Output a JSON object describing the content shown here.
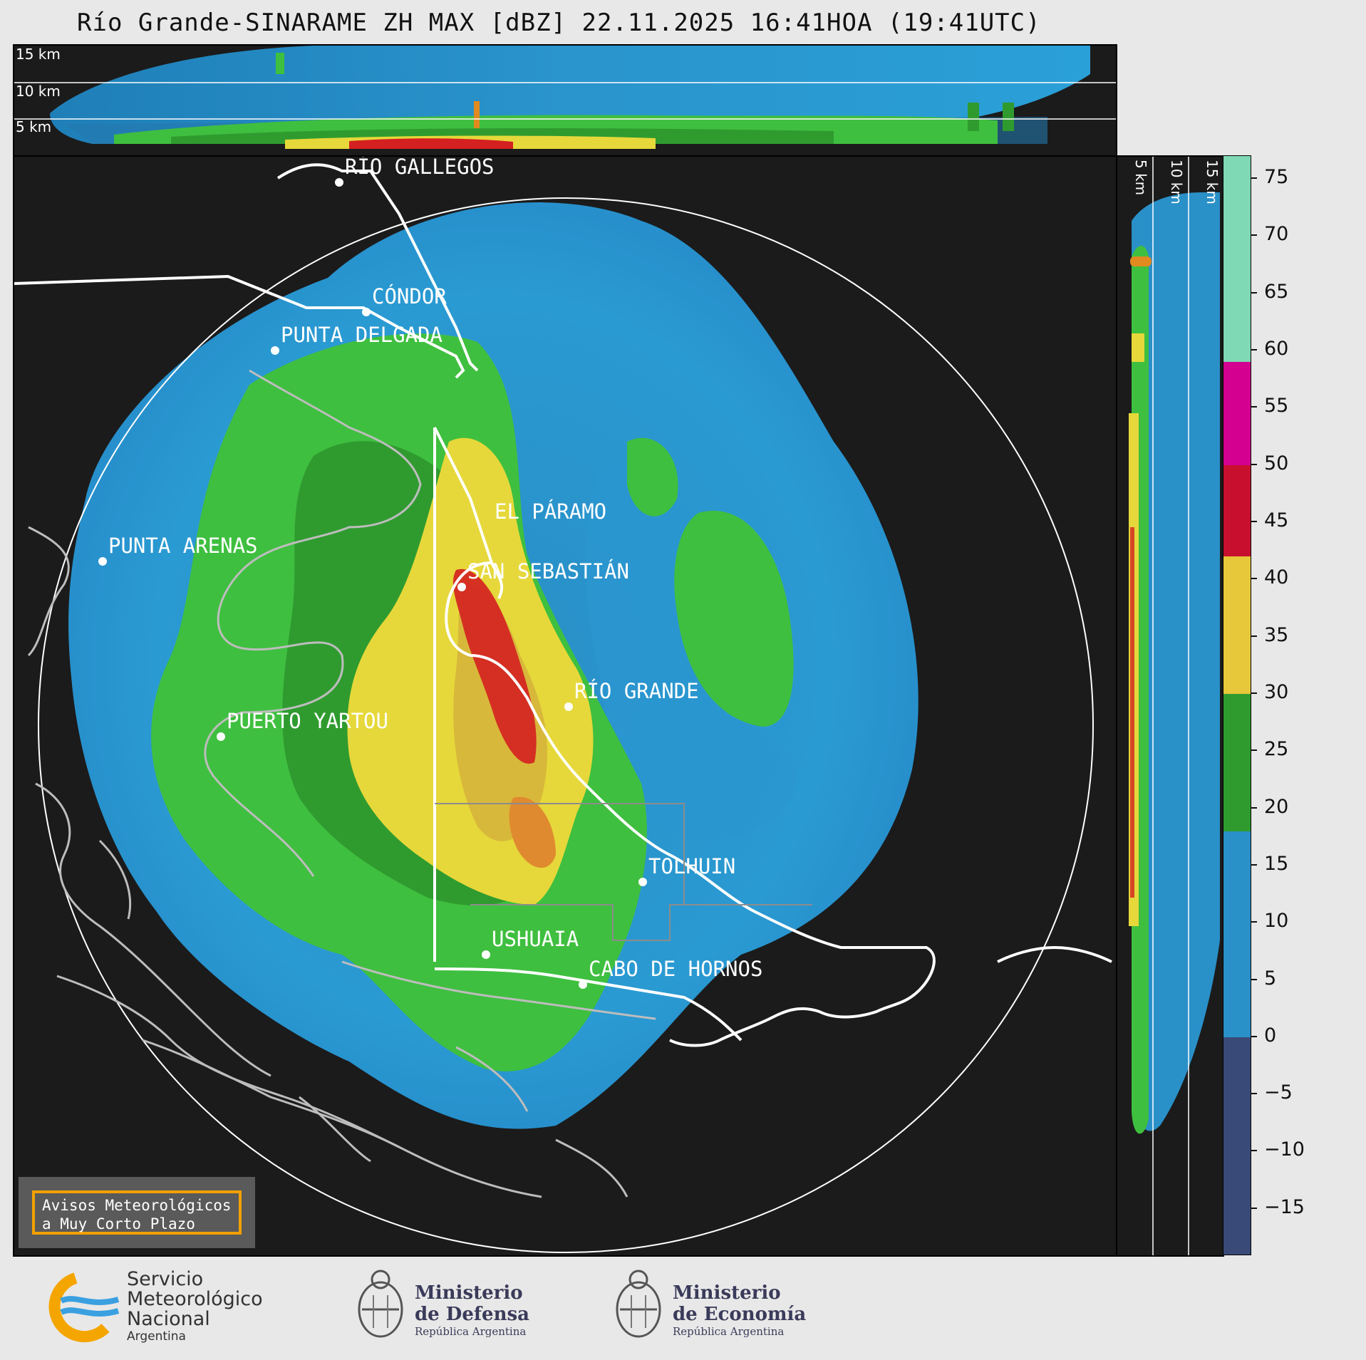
{
  "title": "Río Grande-SINARAME ZH MAX [dBZ] 22.11.2025 16:41HOA (19:41UTC)",
  "height_labels_top": [
    "15 km",
    "10 km",
    "5 km"
  ],
  "height_labels_side": [
    "5 km",
    "10 km",
    "15 km"
  ],
  "cities": [
    {
      "name": "RÍO GALLEGOS"
    },
    {
      "name": "CÓNDOR"
    },
    {
      "name": "PUNTA DELGADA"
    },
    {
      "name": "EL PÁRAMO"
    },
    {
      "name": "PUNTA ARENAS"
    },
    {
      "name": "SAN SEBASTIÁN"
    },
    {
      "name": "RÍO GRANDE"
    },
    {
      "name": "PUERTO YARTOU"
    },
    {
      "name": "TOLHUIN"
    },
    {
      "name": "USHUAIA"
    },
    {
      "name": "CABO DE HORNOS"
    }
  ],
  "colorbar": {
    "unit": "dBZ",
    "ticks": [
      "75",
      "70",
      "65",
      "60",
      "55",
      "50",
      "45",
      "40",
      "35",
      "30",
      "25",
      "20",
      "15",
      "10",
      "5",
      "0",
      "−5",
      "−10",
      "−15"
    ],
    "bands": [
      {
        "from": 59,
        "to": 77,
        "color": "#7fd9b4"
      },
      {
        "from": 50,
        "to": 59,
        "color": "#d40090"
      },
      {
        "from": 42,
        "to": 50,
        "color": "#c8102e"
      },
      {
        "from": 30,
        "to": 42,
        "color": "#e6c83a"
      },
      {
        "from": 18,
        "to": 30,
        "color": "#2f9b2f"
      },
      {
        "from": 0,
        "to": 18,
        "color": "#2a90c8"
      },
      {
        "from": -19,
        "to": 0,
        "color": "#3a4a78"
      }
    ]
  },
  "alert": {
    "line1": "Avisos Meteorológicos",
    "line2": "a Muy Corto Plazo"
  },
  "logos": {
    "smn": {
      "line1": "Servicio",
      "line2": "Meteorológico",
      "line3": "Nacional",
      "line4": "Argentina"
    },
    "defensa": {
      "line1": "Ministerio",
      "line2": "de Defensa",
      "line3": "República Argentina"
    },
    "economia": {
      "line1": "Ministerio",
      "line2": "de Economía",
      "line3": "República Argentina"
    }
  },
  "colors": {
    "background": "#1b1b1b",
    "weak": "#2a90c8",
    "moderate": "#3fbf3f",
    "strong": "#e6d83a",
    "intense": "#d42020"
  }
}
